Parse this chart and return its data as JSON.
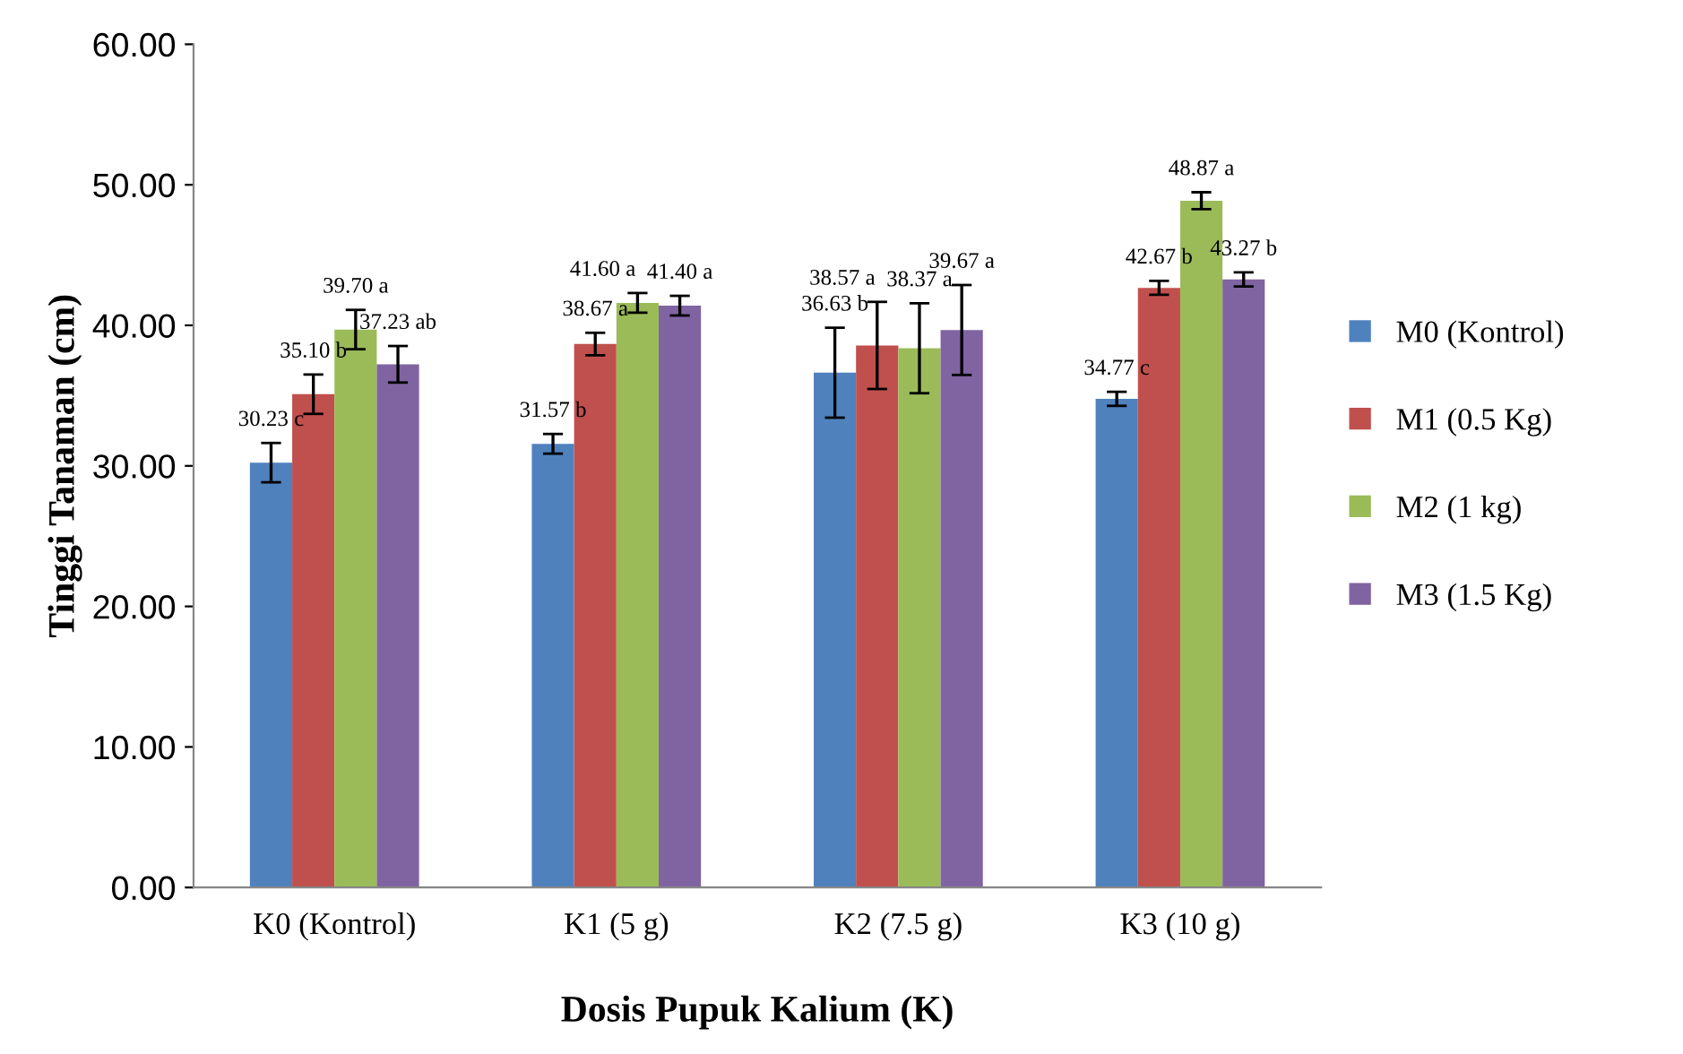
{
  "chart_data": {
    "type": "bar",
    "xlabel": "Dosis Pupuk Kalium (K)",
    "ylabel": "Tinggi Tanaman (cm)",
    "categories": [
      "K0 (Kontrol)",
      "K1 (5 g)",
      "K2 (7.5 g)",
      "K3 (10 g)"
    ],
    "series": [
      {
        "name": "M0 (Kontrol)",
        "color": "#4f81bd",
        "values": [
          30.23,
          31.57,
          36.63,
          34.77
        ],
        "errors": [
          1.4,
          0.7,
          3.2,
          0.5
        ],
        "value_labels": [
          "30.23 c",
          "31.57 b",
          "36.63 b",
          "34.77 c"
        ]
      },
      {
        "name": "M1 (0.5 Kg)",
        "color": "#c0504d",
        "values": [
          35.1,
          38.67,
          38.57,
          42.67
        ],
        "errors": [
          1.4,
          0.8,
          3.1,
          0.5
        ],
        "value_labels": [
          "35.10 b",
          "38.67 a",
          "38.57 a",
          "42.67 b"
        ]
      },
      {
        "name": "M2 (1 kg)",
        "color": "#9bbb59",
        "values": [
          39.7,
          41.6,
          38.37,
          48.87
        ],
        "errors": [
          1.4,
          0.7,
          3.2,
          0.6
        ],
        "value_labels": [
          "39.70 a",
          "41.60 a",
          "38.37 a",
          "48.87 a"
        ]
      },
      {
        "name": "M3 (1.5 Kg)",
        "color": "#8064a2",
        "values": [
          37.23,
          41.4,
          39.67,
          43.27
        ],
        "errors": [
          1.3,
          0.7,
          3.2,
          0.5
        ],
        "value_labels": [
          "37.23 ab",
          "41.40 a",
          "39.67 a",
          "43.27 b"
        ]
      }
    ],
    "ylim": [
      0,
      60
    ],
    "yticks": [
      {
        "value": 0,
        "label": "0.00"
      },
      {
        "value": 10,
        "label": "10.00"
      },
      {
        "value": 20,
        "label": "20.00"
      },
      {
        "value": 30,
        "label": "30.00"
      },
      {
        "value": 40,
        "label": "40.00"
      },
      {
        "value": 50,
        "label": "50.00"
      },
      {
        "value": 60,
        "label": "60.00"
      }
    ],
    "grid": false,
    "legend": "right"
  }
}
